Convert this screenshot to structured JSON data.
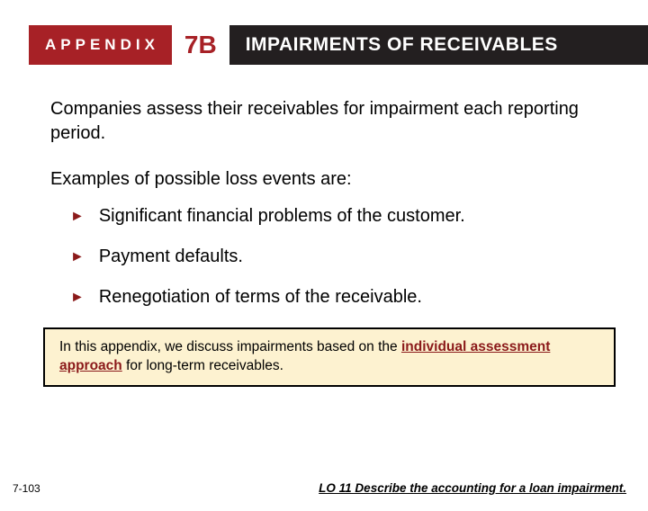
{
  "header": {
    "appendix_label": "APPENDIX",
    "chapter": "7B",
    "title": "IMPAIRMENTS OF RECEIVABLES",
    "colors": {
      "appendix_bg": "#a72126",
      "appendix_fg": "#ffffff",
      "chapter_fg": "#a72126",
      "title_bg": "#231f20",
      "title_fg": "#ffffff"
    }
  },
  "body": {
    "intro": "Companies assess their receivables for impairment each reporting period.",
    "examples_label": "Examples of possible loss events are:",
    "bullets": [
      "Significant financial problems of the customer.",
      "Payment defaults.",
      "Renegotiation of terms of the receivable."
    ],
    "bullet_glyph": "►",
    "bullet_color": "#8b1a1a"
  },
  "note": {
    "prefix": "In this appendix, we discuss impairments based on the ",
    "keyword": "individual assessment approach",
    "suffix": " for long-term receivables.",
    "bg": "#fdf2d0",
    "border": "#000000",
    "keyword_color": "#8b1a1a"
  },
  "footer": {
    "page": "7-103",
    "lo": "LO 11  Describe the accounting for a loan impairment."
  }
}
